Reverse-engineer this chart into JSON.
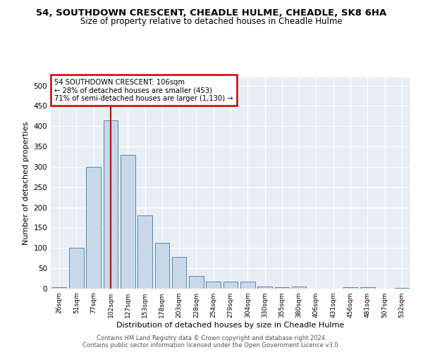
{
  "title": "54, SOUTHDOWN CRESCENT, CHEADLE HULME, CHEADLE, SK8 6HA",
  "subtitle": "Size of property relative to detached houses in Cheadle Hulme",
  "xlabel": "Distribution of detached houses by size in Cheadle Hulme",
  "ylabel": "Number of detached properties",
  "categories": [
    "26sqm",
    "51sqm",
    "77sqm",
    "102sqm",
    "127sqm",
    "153sqm",
    "178sqm",
    "203sqm",
    "228sqm",
    "254sqm",
    "279sqm",
    "304sqm",
    "330sqm",
    "355sqm",
    "380sqm",
    "406sqm",
    "431sqm",
    "456sqm",
    "481sqm",
    "507sqm",
    "532sqm"
  ],
  "values": [
    4,
    100,
    300,
    415,
    330,
    180,
    112,
    78,
    32,
    18,
    18,
    18,
    6,
    3,
    6,
    0,
    0,
    4,
    4,
    0,
    2
  ],
  "bar_color": "#c8d8e8",
  "bar_edge_color": "#5588aa",
  "red_line_index": 3,
  "red_line_color": "#cc0000",
  "annotation_line1": "54 SOUTHDOWN CRESCENT: 106sqm",
  "annotation_line2": "← 28% of detached houses are smaller (453)",
  "annotation_line3": "71% of semi-detached houses are larger (1,130) →",
  "annotation_box_color": "#cc0000",
  "ylim": [
    0,
    520
  ],
  "yticks": [
    0,
    50,
    100,
    150,
    200,
    250,
    300,
    350,
    400,
    450,
    500
  ],
  "background_color": "#e8eef4",
  "footer_line1": "Contains HM Land Registry data © Crown copyright and database right 2024.",
  "footer_line2": "Contains public sector information licensed under the Open Government Licence v3.0."
}
